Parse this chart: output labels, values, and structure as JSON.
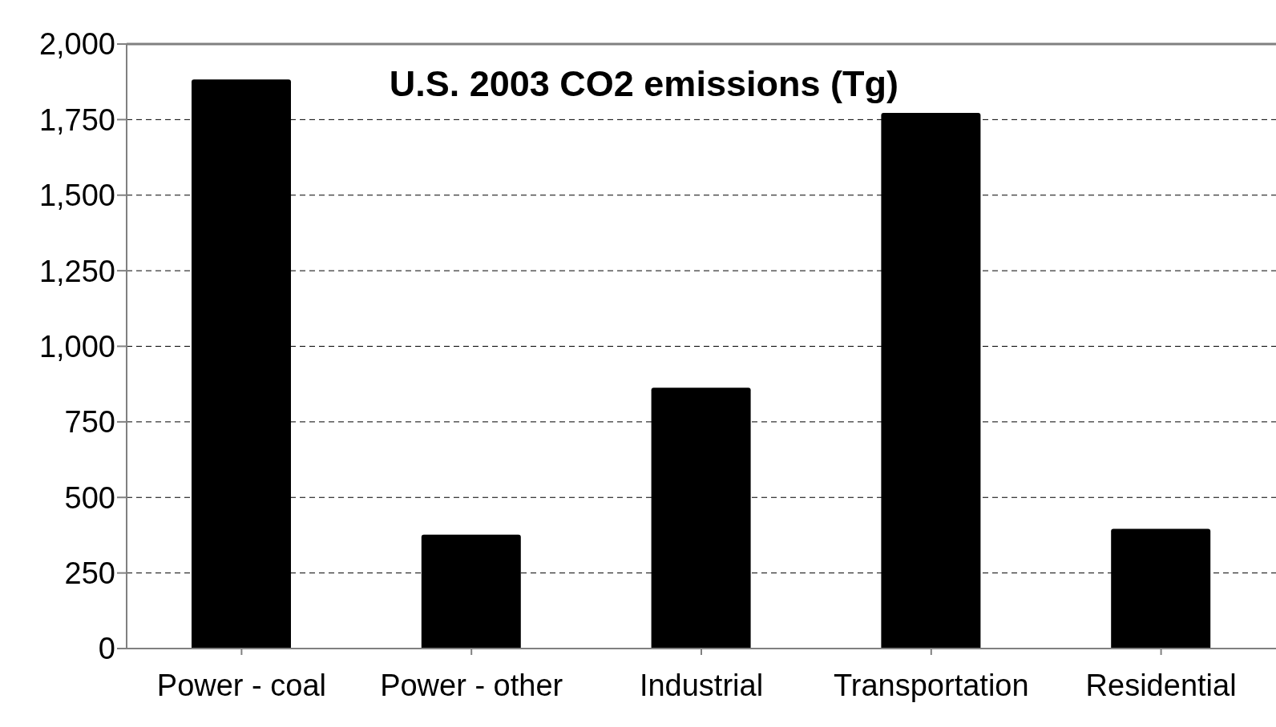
{
  "chart_data": {
    "type": "bar",
    "title": "U.S. 2003 CO2 emissions (Tg)",
    "categories": [
      "Power - coal",
      "Power - other",
      "Industrial",
      "Transportation",
      "Residential"
    ],
    "values": [
      1883,
      377,
      863,
      1772,
      396
    ],
    "color": "#000000",
    "ylim": [
      0,
      2000
    ],
    "yticks": [
      0,
      {
        "value": 250,
        "label": "250"
      },
      {
        "value": 500,
        "label": "500"
      },
      {
        "value": 750,
        "label": "750"
      },
      {
        "value": 1000,
        "label": "1,000"
      },
      {
        "value": 1250,
        "label": "1,250"
      },
      {
        "value": 1500,
        "label": "1,500"
      },
      {
        "value": 1750,
        "label": "1,750"
      },
      {
        "value": 2000,
        "label": "2,000"
      }
    ],
    "grid": "y",
    "legend": false
  }
}
